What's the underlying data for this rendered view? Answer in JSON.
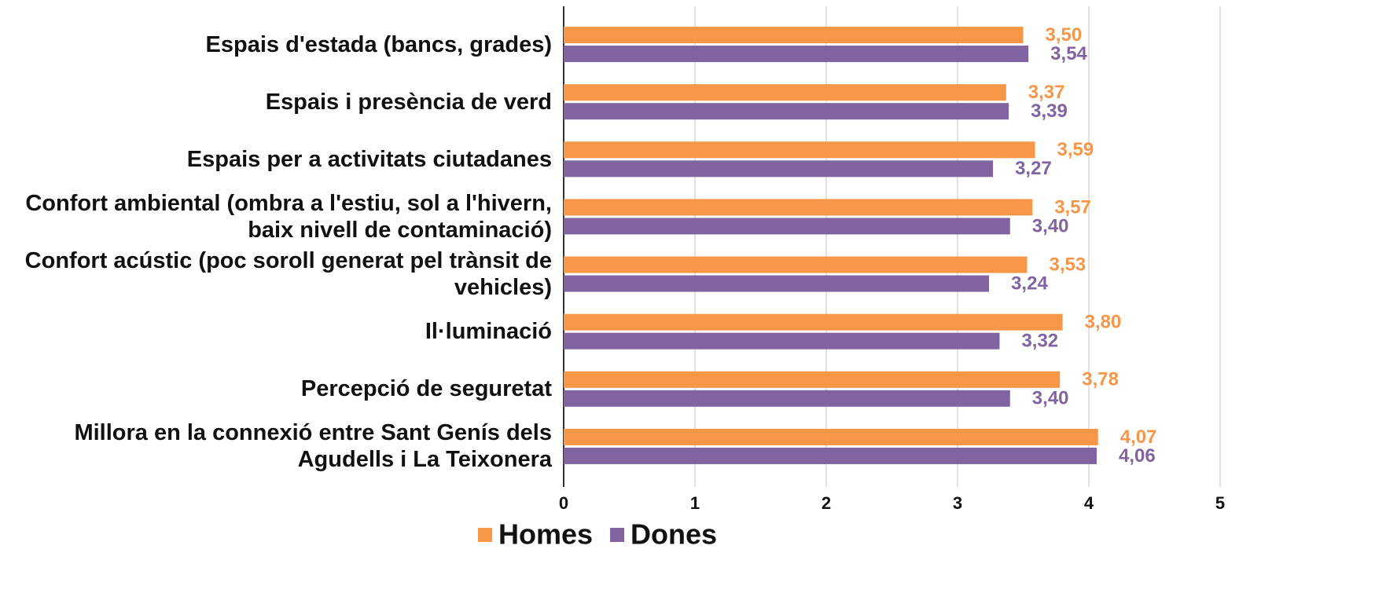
{
  "chart_data": {
    "type": "barh",
    "categories": [
      "Espais d'estada (bancs, grades)",
      "Espais i presència de verd",
      "Espais per a activitats ciutadanes",
      "Confort ambiental (ombra a l'estiu, sol a l'hivern, baix nivell de contaminació)",
      "Confort acústic (poc soroll generat pel trànsit de vehicles)",
      "Il·luminació",
      "Percepció de seguretat",
      "Millora en la connexió entre Sant Genís dels Agudells i La Teixonera"
    ],
    "series": [
      {
        "name": "Homes",
        "color": "#f79646",
        "values": [
          3.5,
          3.37,
          3.59,
          3.57,
          3.53,
          3.8,
          3.78,
          4.07
        ],
        "value_labels": [
          "3,50",
          "3,37",
          "3,59",
          "3,57",
          "3,53",
          "3,80",
          "3,78",
          "4,07"
        ]
      },
      {
        "name": "Dones",
        "color": "#8064a2",
        "values": [
          3.54,
          3.39,
          3.27,
          3.4,
          3.24,
          3.32,
          3.4,
          4.06
        ],
        "value_labels": [
          "3,54",
          "3,39",
          "3,27",
          "3,40",
          "3,24",
          "3,32",
          "3,40",
          "4,06"
        ]
      }
    ],
    "xlim": [
      0,
      5
    ],
    "xticks": [
      0,
      1,
      2,
      3,
      4,
      5
    ],
    "grid": true,
    "legend": "bottom"
  }
}
